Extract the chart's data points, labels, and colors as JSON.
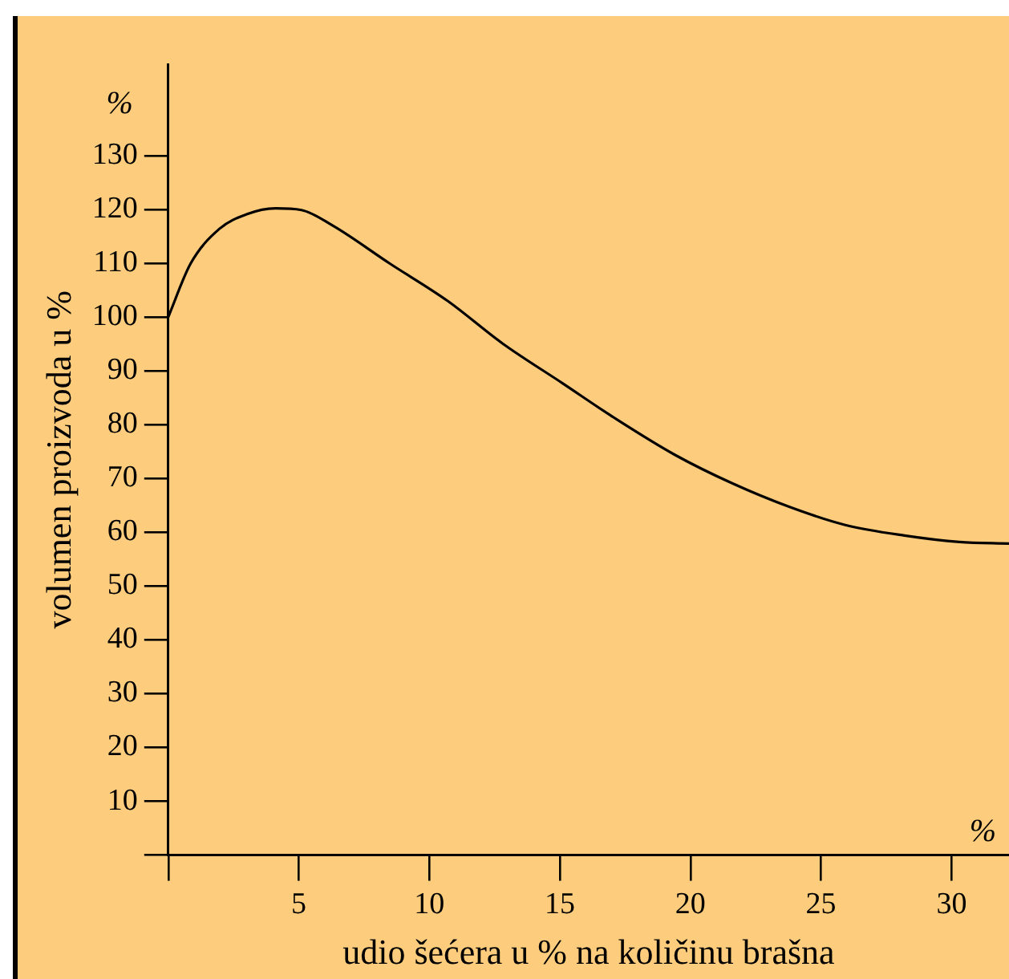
{
  "chart_data": {
    "type": "line",
    "xlabel": "udio šećera u % na količinu brašna",
    "ylabel": "volumen proizvoda u %",
    "annotations": [
      "%",
      "%"
    ],
    "x": [
      0,
      0.85,
      1.96,
      3.0,
      4.1,
      5.1,
      6.3,
      8.5,
      10.7,
      12.8,
      15.1,
      17.2,
      19.4,
      21.6,
      23.8,
      25.9,
      28.2,
      30.3,
      32.2
    ],
    "series": [
      {
        "color": "#000000",
        "values": [
          100,
          109.9,
          116.4,
          119.1,
          120.2,
          119.9,
          117,
          109.9,
          103,
          95.1,
          87.7,
          80.9,
          74.4,
          69.1,
          64.7,
          61.4,
          59.4,
          58.2,
          57.9
        ]
      }
    ],
    "xlim": [
      0,
      32.2
    ],
    "ylim": [
      0,
      147
    ],
    "xticks": [
      {
        "value": 0,
        "label": null
      },
      5,
      10,
      15,
      20,
      25,
      30
    ],
    "yticks": [
      {
        "value": 0,
        "label": null
      },
      10,
      20,
      30,
      40,
      50,
      60,
      70,
      80,
      90,
      100,
      110,
      120,
      130
    ],
    "grid": false,
    "legend": false,
    "marker": "none",
    "line_style": "solid"
  }
}
